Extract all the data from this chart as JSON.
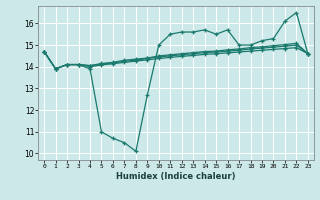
{
  "xlabel": "Humidex (Indice chaleur)",
  "background_color": "#cce8e8",
  "grid_color": "#ffffff",
  "line_color": "#1a7a6e",
  "xlim": [
    -0.5,
    23.5
  ],
  "ylim": [
    9.7,
    16.8
  ],
  "yticks": [
    10,
    11,
    12,
    13,
    14,
    15,
    16
  ],
  "xticks": [
    0,
    1,
    2,
    3,
    4,
    5,
    6,
    7,
    8,
    9,
    10,
    11,
    12,
    13,
    14,
    15,
    16,
    17,
    18,
    19,
    20,
    21,
    22,
    23
  ],
  "series1_x": [
    0,
    1,
    2,
    3,
    4,
    5,
    6,
    7,
    8,
    9,
    10,
    11,
    12,
    13,
    14,
    15,
    16,
    17,
    18,
    19,
    20,
    21,
    22,
    23
  ],
  "series1_y": [
    14.7,
    13.9,
    14.1,
    14.1,
    13.9,
    11.0,
    10.7,
    10.5,
    10.1,
    12.7,
    15.0,
    15.5,
    15.6,
    15.6,
    15.7,
    15.5,
    15.7,
    15.0,
    15.0,
    15.2,
    15.3,
    16.1,
    16.5,
    14.6
  ],
  "series2_x": [
    0,
    1,
    2,
    3,
    4,
    5,
    6,
    7,
    8,
    9,
    10,
    11,
    12,
    13,
    14,
    15,
    16,
    17,
    18,
    19,
    20,
    21,
    22,
    23
  ],
  "series2_y": [
    14.7,
    13.9,
    14.1,
    14.1,
    14.05,
    14.15,
    14.2,
    14.3,
    14.35,
    14.4,
    14.5,
    14.55,
    14.6,
    14.65,
    14.7,
    14.72,
    14.78,
    14.82,
    14.88,
    14.92,
    14.97,
    15.02,
    15.08,
    14.6
  ],
  "series3_x": [
    0,
    1,
    2,
    3,
    4,
    5,
    6,
    7,
    8,
    9,
    10,
    11,
    12,
    13,
    14,
    15,
    16,
    17,
    18,
    19,
    20,
    21,
    22,
    23
  ],
  "series3_y": [
    14.7,
    13.9,
    14.1,
    14.1,
    14.05,
    14.12,
    14.18,
    14.25,
    14.3,
    14.38,
    14.45,
    14.5,
    14.55,
    14.6,
    14.65,
    14.68,
    14.72,
    14.76,
    14.82,
    14.86,
    14.9,
    14.95,
    15.0,
    14.6
  ],
  "series4_x": [
    0,
    1,
    2,
    3,
    4,
    5,
    6,
    7,
    8,
    9,
    10,
    11,
    12,
    13,
    14,
    15,
    16,
    17,
    18,
    19,
    20,
    21,
    22,
    23
  ],
  "series4_y": [
    14.7,
    13.9,
    14.1,
    14.1,
    14.0,
    14.08,
    14.14,
    14.2,
    14.26,
    14.32,
    14.38,
    14.43,
    14.48,
    14.52,
    14.57,
    14.6,
    14.64,
    14.68,
    14.72,
    14.76,
    14.8,
    14.84,
    14.88,
    14.6
  ]
}
